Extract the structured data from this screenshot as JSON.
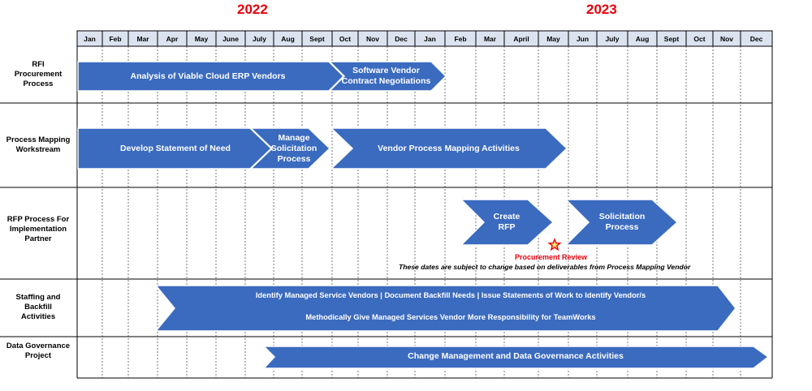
{
  "years": [
    "2022",
    "2023"
  ],
  "months": [
    "Jan",
    "Feb",
    "Mar",
    "Apr",
    "May",
    "June",
    "July",
    "Aug",
    "Sept",
    "Oct",
    "Nov",
    "Dec",
    "Jan",
    "Feb",
    "Mar",
    "April",
    "May",
    "Jun",
    "July",
    "Aug",
    "Sept",
    "Oct",
    "Nov",
    "Dec"
  ],
  "rows": [
    {
      "label": [
        "RFI",
        "Procurement",
        "Process"
      ]
    },
    {
      "label": [
        "Process Mapping",
        "Workstream"
      ]
    },
    {
      "label": [
        "RFP Process For",
        "Implementation",
        "Partner"
      ]
    },
    {
      "label": [
        "Staffing and",
        "Backfill",
        "Activities"
      ]
    },
    {
      "label": [
        "Data Governance",
        "Project"
      ]
    }
  ],
  "bars": {
    "analysis": [
      "Analysis of Viable Cloud ERP Vendors"
    ],
    "contract": [
      "Software Vendor",
      "Contract Negotiations"
    ],
    "statement": [
      "Develop Statement of Need"
    ],
    "solicitation_mgmt": [
      "Manage",
      "Solicitation",
      "Process"
    ],
    "vendor_mapping": [
      "Vendor Process Mapping Activities"
    ],
    "create_rfp": [
      "Create",
      "RFP"
    ],
    "solicitation": [
      "Solicitation",
      "Process"
    ],
    "staffing_line1": "Identify Managed Service Vendors | Document Backfill Needs | Issue Statements of Work to Identify  Vendor/s",
    "staffing_line2": "Methodically Give Managed Services Vendor More Responsibility for TeamWorks",
    "data_gov": [
      "Change Management and Data Governance Activities"
    ]
  },
  "milestone": {
    "label": "Procurement Review",
    "icon": "star-icon"
  },
  "note": "These dates are subject to change based on deliverables from Process Mapping Vendor",
  "colors": {
    "bar": "#3b6bbf",
    "bar_edge": "#2c55a0",
    "year": "#e8000b",
    "header_bg": "#dce3f0",
    "star": "#e8000b",
    "star_fill": "#ffe36e"
  }
}
